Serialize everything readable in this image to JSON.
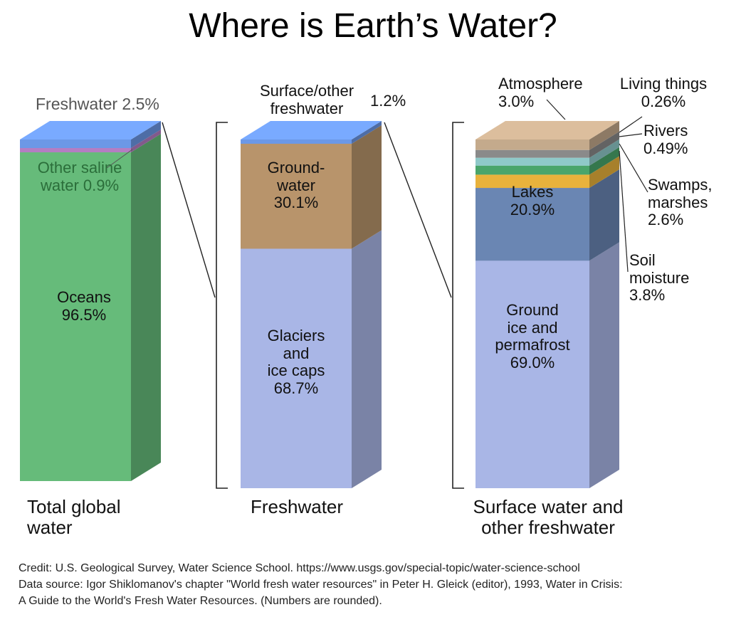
{
  "title": "Where is Earth’s Water?",
  "chart_data": [
    {
      "type": "bar",
      "xlabel": "Total global\nwater",
      "series": [
        {
          "name": "Oceans",
          "value": 96.5,
          "label": "Oceans\n96.5%"
        },
        {
          "name": "Other saline water",
          "value": 0.9,
          "label": "Other saline\nwater 0.9%"
        },
        {
          "name": "Freshwater",
          "value": 2.5,
          "label": "Freshwater 2.5%"
        }
      ],
      "colors": [
        "#66bb7a",
        "#b47dc2",
        "#6c98e6"
      ]
    },
    {
      "type": "bar",
      "xlabel": "Freshwater",
      "series": [
        {
          "name": "Glaciers and ice caps",
          "value": 68.7,
          "label": "Glaciers\nand\nice caps\n68.7%"
        },
        {
          "name": "Groundwater",
          "value": 30.1,
          "label": "Ground-\nwater\n30.1%"
        },
        {
          "name": "Surface/other freshwater",
          "value": 1.2,
          "label": "Surface/other\nfreshwater",
          "value_label": "1.2%"
        }
      ],
      "colors": [
        "#a9b6e6",
        "#b8946b",
        "#6c98e6"
      ]
    },
    {
      "type": "bar",
      "xlabel": "Surface water and\nother freshwater",
      "series": [
        {
          "name": "Ground ice and permafrost",
          "value": 69.0,
          "label": "Ground\nice and\npermafrost\n69.0%"
        },
        {
          "name": "Lakes",
          "value": 20.9,
          "label": "Lakes\n20.9%"
        },
        {
          "name": "Soil moisture",
          "value": 3.8,
          "label": "Soil\nmoisture\n3.8%"
        },
        {
          "name": "Swamps, marshes",
          "value": 2.6,
          "label": "Swamps,\nmarshes\n2.6%"
        },
        {
          "name": "Rivers",
          "value": 0.49,
          "label": "Rivers\n0.49%"
        },
        {
          "name": "Living things",
          "value": 0.26,
          "label": "Living things\n0.26%"
        },
        {
          "name": "Atmosphere",
          "value": 3.0,
          "label": "Atmosphere\n3.0%"
        }
      ],
      "colors": [
        "#a9b6e6",
        "#6a86b3",
        "#e8b23c",
        "#4aa56b",
        "#8fc9c9",
        "#8a8a8a",
        "#c4aa8c"
      ]
    }
  ],
  "credit": {
    "line1": "Credit: U.S. Geological Survey, Water Science School. https://www.usgs.gov/special-topic/water-science-school",
    "line2": "Data source: Igor Shiklomanov's chapter \"World fresh water resources\" in Peter H. Gleick (editor), 1993, Water in Crisis:",
    "line3": "A Guide to the World's Fresh Water Resources. (Numbers are rounded)."
  }
}
